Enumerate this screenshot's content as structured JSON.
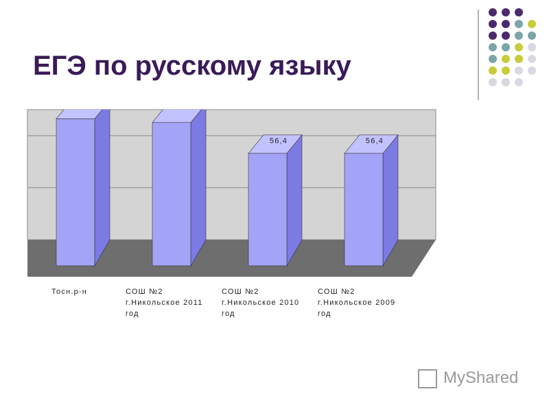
{
  "header": {
    "title": "ЕГЭ по русскому языку",
    "watermark": "MyShared"
  },
  "chart_data": {
    "type": "bar3d",
    "categories": [
      "Тосн.р-н",
      "СОШ №2 г.Никольское 2011 год",
      "СОШ №2 г.Никольское 2010 год",
      "СОШ №2 г.Никольское 2009 год"
    ],
    "values": [
      75,
      73,
      56.4,
      56.4
    ],
    "value_labels": [
      null,
      null,
      "56,4",
      "56,4"
    ],
    "color": "#a3a3f7",
    "ylim": [
      0,
      70
    ],
    "ygrid": [
      28,
      56
    ]
  }
}
